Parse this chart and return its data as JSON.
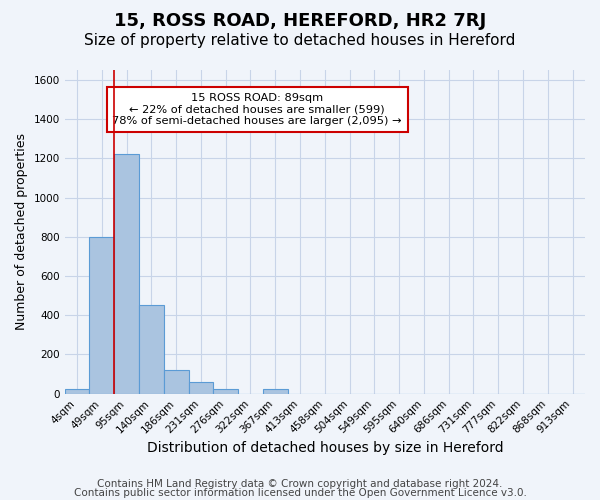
{
  "title": "15, ROSS ROAD, HEREFORD, HR2 7RJ",
  "subtitle": "Size of property relative to detached houses in Hereford",
  "xlabel": "Distribution of detached houses by size in Hereford",
  "ylabel": "Number of detached properties",
  "bin_labels": [
    "4sqm",
    "49sqm",
    "95sqm",
    "140sqm",
    "186sqm",
    "231sqm",
    "276sqm",
    "322sqm",
    "367sqm",
    "413sqm",
    "458sqm",
    "504sqm",
    "549sqm",
    "595sqm",
    "640sqm",
    "686sqm",
    "731sqm",
    "777sqm",
    "822sqm",
    "868sqm",
    "913sqm"
  ],
  "bar_values": [
    25,
    800,
    1220,
    450,
    120,
    60,
    25,
    0,
    25,
    0,
    0,
    0,
    0,
    0,
    0,
    0,
    0,
    0,
    0,
    0,
    0
  ],
  "bar_color": "#aac4e0",
  "bar_edge_color": "#5b9bd5",
  "vline_color": "#cc0000",
  "vline_x_index": 1.5,
  "ylim": [
    0,
    1650
  ],
  "yticks": [
    0,
    200,
    400,
    600,
    800,
    1000,
    1200,
    1400,
    1600
  ],
  "annotation_title": "15 ROSS ROAD: 89sqm",
  "annotation_line1": "← 22% of detached houses are smaller (599)",
  "annotation_line2": "78% of semi-detached houses are larger (2,095) →",
  "annotation_box_color": "#ffffff",
  "annotation_box_edge": "#cc0000",
  "footer1": "Contains HM Land Registry data © Crown copyright and database right 2024.",
  "footer2": "Contains public sector information licensed under the Open Government Licence v3.0.",
  "background_color": "#f0f4fa",
  "grid_color": "#c8d4e8",
  "title_fontsize": 13,
  "subtitle_fontsize": 11,
  "xlabel_fontsize": 10,
  "ylabel_fontsize": 9,
  "tick_fontsize": 7.5,
  "footer_fontsize": 7.5
}
